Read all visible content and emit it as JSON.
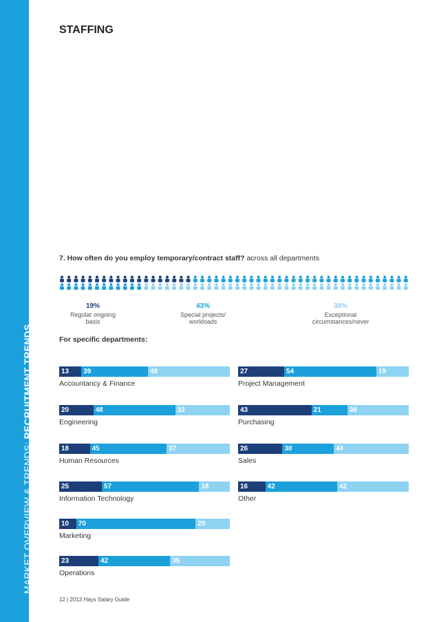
{
  "sidebar": {
    "prefix": "MARKET OVERVIEW & TRENDS: ",
    "bold": "RECRUITMENT TRENDS"
  },
  "page_title": "STAFFING",
  "question": {
    "number_and_bold": "7.  How often do you employ temporary/contract staff?",
    "rest": " across all departments"
  },
  "colors": {
    "regular": "#1c3f7a",
    "special": "#1ba0dc",
    "exceptional": "#8fd3f2"
  },
  "overall": [
    {
      "pct": "19%",
      "label": "Regular ongoing\nbasis",
      "value": 19,
      "color": "#1c3f7a"
    },
    {
      "pct": "43%",
      "label": "Special projects/\nworkloads",
      "value": 43,
      "color": "#1ba0dc"
    },
    {
      "pct": "38%",
      "label": "Exceptional\ncircumstances/never",
      "value": 38,
      "color": "#8fd3f2"
    }
  ],
  "subheading": "For specific departments:",
  "chart_data": {
    "type": "bar",
    "stacked": true,
    "orientation": "horizontal",
    "series": [
      {
        "name": "Regular ongoing basis",
        "color": "#1c3f7a"
      },
      {
        "name": "Special projects/workloads",
        "color": "#1ba0dc"
      },
      {
        "name": "Exceptional circumstances/never",
        "color": "#8fd3f2"
      }
    ],
    "departments": [
      {
        "name": "Accountancy & Finance",
        "values": [
          13,
          39,
          48
        ]
      },
      {
        "name": "Engineering",
        "values": [
          20,
          48,
          32
        ]
      },
      {
        "name": "Human Resources",
        "values": [
          18,
          45,
          37
        ]
      },
      {
        "name": "Information Technology",
        "values": [
          25,
          57,
          18
        ]
      },
      {
        "name": "Marketing",
        "values": [
          10,
          70,
          20
        ]
      },
      {
        "name": "Operations",
        "values": [
          23,
          42,
          35
        ]
      },
      {
        "name": "Project Management",
        "values": [
          27,
          54,
          19
        ]
      },
      {
        "name": "Purchasing",
        "values": [
          43,
          21,
          36
        ]
      },
      {
        "name": "Sales",
        "values": [
          26,
          30,
          44
        ]
      },
      {
        "name": "Other",
        "values": [
          16,
          42,
          42
        ]
      }
    ]
  },
  "footer": "12 | 2013 Hays Salary Guide"
}
